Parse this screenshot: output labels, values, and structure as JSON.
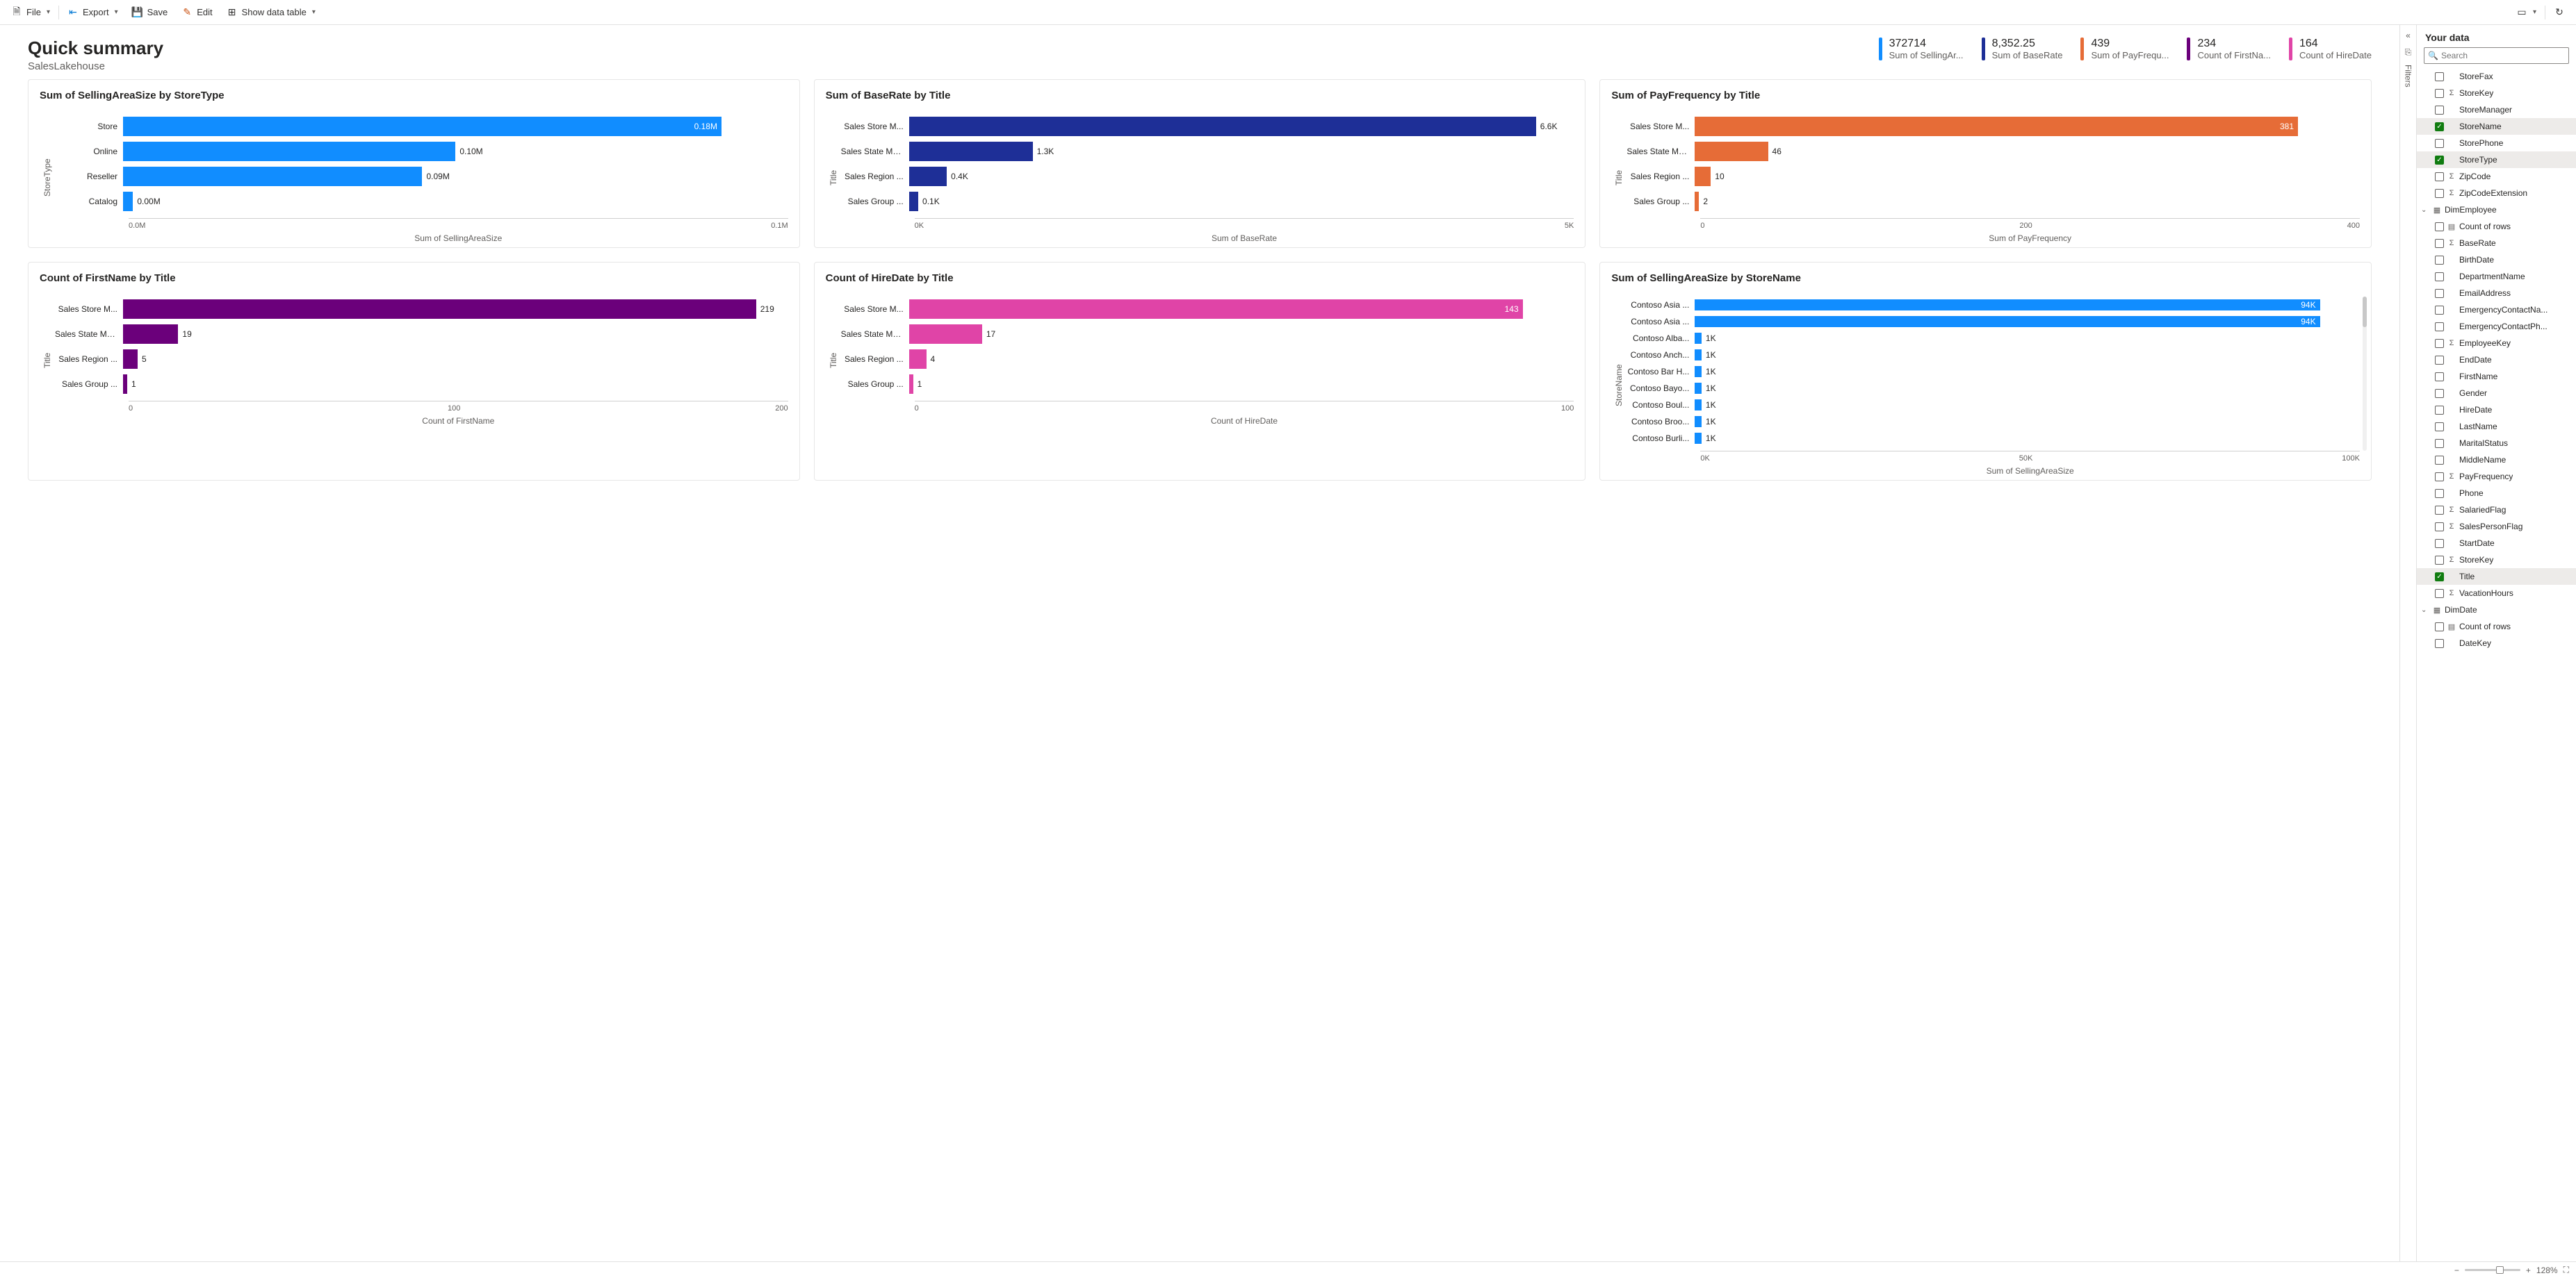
{
  "toolbar": {
    "file": "File",
    "export": "Export",
    "save": "Save",
    "edit": "Edit",
    "show_table": "Show data table"
  },
  "header": {
    "title": "Quick summary",
    "subtitle": "SalesLakehouse"
  },
  "kpis": [
    {
      "value": "372714",
      "label": "Sum of SellingAr...",
      "color": "#118dff"
    },
    {
      "value": "8,352.25",
      "label": "Sum of BaseRate",
      "color": "#1e2f97"
    },
    {
      "value": "439",
      "label": "Sum of PayFrequ...",
      "color": "#e66c37"
    },
    {
      "value": "234",
      "label": "Count of FirstNa...",
      "color": "#6b007b"
    },
    {
      "value": "164",
      "label": "Count of HireDate",
      "color": "#e044a7"
    }
  ],
  "charts": [
    {
      "title": "Sum of SellingAreaSize by StoreType",
      "ylabel": "StoreType",
      "xlabel": "Sum of SellingAreaSize",
      "color": "#118dff",
      "max": 0.2,
      "ticks": [
        "0.0M",
        "0.1M"
      ],
      "rows": [
        {
          "cat": "Store",
          "val": 0.18,
          "label": "0.18M",
          "inside": true
        },
        {
          "cat": "Online",
          "val": 0.1,
          "label": "0.10M",
          "inside": false
        },
        {
          "cat": "Reseller",
          "val": 0.09,
          "label": "0.09M",
          "inside": false
        },
        {
          "cat": "Catalog",
          "val": 0.003,
          "label": "0.00M",
          "inside": false
        }
      ]
    },
    {
      "title": "Sum of BaseRate by Title",
      "ylabel": "Title",
      "xlabel": "Sum of BaseRate",
      "color": "#1e2f97",
      "max": 7.0,
      "ticks": [
        "0K",
        "5K"
      ],
      "rows": [
        {
          "cat": "Sales Store M...",
          "val": 6.6,
          "label": "6.6K",
          "inside": false
        },
        {
          "cat": "Sales State Ma...",
          "val": 1.3,
          "label": "1.3K",
          "inside": false
        },
        {
          "cat": "Sales Region ...",
          "val": 0.4,
          "label": "0.4K",
          "inside": false
        },
        {
          "cat": "Sales Group ...",
          "val": 0.1,
          "label": "0.1K",
          "inside": false
        }
      ]
    },
    {
      "title": "Sum of PayFrequency by Title",
      "ylabel": "Title",
      "xlabel": "Sum of PayFrequency",
      "color": "#e66c37",
      "max": 420,
      "ticks": [
        "0",
        "200",
        "400"
      ],
      "rows": [
        {
          "cat": "Sales Store M...",
          "val": 381,
          "label": "381",
          "inside": true
        },
        {
          "cat": "Sales State Ma...",
          "val": 46,
          "label": "46",
          "inside": false
        },
        {
          "cat": "Sales Region ...",
          "val": 10,
          "label": "10",
          "inside": false
        },
        {
          "cat": "Sales Group ...",
          "val": 2,
          "label": "2",
          "inside": false
        }
      ]
    },
    {
      "title": "Count of FirstName by Title",
      "ylabel": "Title",
      "xlabel": "Count of FirstName",
      "color": "#6b007b",
      "max": 230,
      "ticks": [
        "0",
        "100",
        "200"
      ],
      "rows": [
        {
          "cat": "Sales Store M...",
          "val": 219,
          "label": "219",
          "inside": false
        },
        {
          "cat": "Sales State Ma...",
          "val": 19,
          "label": "19",
          "inside": false
        },
        {
          "cat": "Sales Region ...",
          "val": 5,
          "label": "5",
          "inside": false
        },
        {
          "cat": "Sales Group ...",
          "val": 1,
          "label": "1",
          "inside": false
        }
      ]
    },
    {
      "title": "Count of HireDate by Title",
      "ylabel": "Title",
      "xlabel": "Count of HireDate",
      "color": "#e044a7",
      "max": 155,
      "ticks": [
        "0",
        "100"
      ],
      "rows": [
        {
          "cat": "Sales Store M...",
          "val": 143,
          "label": "143",
          "inside": true
        },
        {
          "cat": "Sales State Ma...",
          "val": 17,
          "label": "17",
          "inside": false
        },
        {
          "cat": "Sales Region ...",
          "val": 4,
          "label": "4",
          "inside": false
        },
        {
          "cat": "Sales Group ...",
          "val": 1,
          "label": "1",
          "inside": false
        }
      ]
    },
    {
      "title": "Sum of SellingAreaSize by StoreName",
      "ylabel": "StoreName",
      "xlabel": "Sum of SellingAreaSize",
      "color": "#118dff",
      "max": 100,
      "ticks": [
        "0K",
        "50K",
        "100K"
      ],
      "slim": true,
      "scroll": true,
      "rows": [
        {
          "cat": "Contoso Asia ...",
          "val": 94,
          "label": "94K",
          "inside": true
        },
        {
          "cat": "Contoso Asia ...",
          "val": 94,
          "label": "94K",
          "inside": true
        },
        {
          "cat": "Contoso Alba...",
          "val": 1,
          "label": "1K",
          "inside": false
        },
        {
          "cat": "Contoso Anch...",
          "val": 1,
          "label": "1K",
          "inside": false
        },
        {
          "cat": "Contoso Bar H...",
          "val": 1,
          "label": "1K",
          "inside": false
        },
        {
          "cat": "Contoso Bayo...",
          "val": 1,
          "label": "1K",
          "inside": false
        },
        {
          "cat": "Contoso Boul...",
          "val": 1,
          "label": "1K",
          "inside": false
        },
        {
          "cat": "Contoso Broo...",
          "val": 1,
          "label": "1K",
          "inside": false
        },
        {
          "cat": "Contoso Burli...",
          "val": 1,
          "label": "1K",
          "inside": false
        }
      ]
    }
  ],
  "data_pane": {
    "title": "Your data",
    "search_placeholder": "Search",
    "fields": [
      {
        "name": "StoreFax",
        "sigma": false,
        "checked": false,
        "indent": 1
      },
      {
        "name": "StoreKey",
        "sigma": true,
        "checked": false,
        "indent": 1
      },
      {
        "name": "StoreManager",
        "sigma": false,
        "checked": false,
        "indent": 1
      },
      {
        "name": "StoreName",
        "sigma": false,
        "checked": true,
        "indent": 1
      },
      {
        "name": "StorePhone",
        "sigma": false,
        "checked": false,
        "indent": 1
      },
      {
        "name": "StoreType",
        "sigma": false,
        "checked": true,
        "indent": 1
      },
      {
        "name": "ZipCode",
        "sigma": true,
        "checked": false,
        "indent": 1
      },
      {
        "name": "ZipCodeExtension",
        "sigma": true,
        "checked": false,
        "indent": 1
      },
      {
        "name": "DimEmployee",
        "table": true,
        "indent": 0
      },
      {
        "name": "Count of rows",
        "calc": true,
        "checked": false,
        "indent": 1
      },
      {
        "name": "BaseRate",
        "sigma": true,
        "checked": false,
        "indent": 1
      },
      {
        "name": "BirthDate",
        "sigma": false,
        "checked": false,
        "indent": 1
      },
      {
        "name": "DepartmentName",
        "sigma": false,
        "checked": false,
        "indent": 1
      },
      {
        "name": "EmailAddress",
        "sigma": false,
        "checked": false,
        "indent": 1
      },
      {
        "name": "EmergencyContactNa...",
        "sigma": false,
        "checked": false,
        "indent": 1
      },
      {
        "name": "EmergencyContactPh...",
        "sigma": false,
        "checked": false,
        "indent": 1
      },
      {
        "name": "EmployeeKey",
        "sigma": true,
        "checked": false,
        "indent": 1
      },
      {
        "name": "EndDate",
        "sigma": false,
        "checked": false,
        "indent": 1
      },
      {
        "name": "FirstName",
        "sigma": false,
        "checked": false,
        "indent": 1
      },
      {
        "name": "Gender",
        "sigma": false,
        "checked": false,
        "indent": 1
      },
      {
        "name": "HireDate",
        "sigma": false,
        "checked": false,
        "indent": 1
      },
      {
        "name": "LastName",
        "sigma": false,
        "checked": false,
        "indent": 1
      },
      {
        "name": "MaritalStatus",
        "sigma": false,
        "checked": false,
        "indent": 1
      },
      {
        "name": "MiddleName",
        "sigma": false,
        "checked": false,
        "indent": 1
      },
      {
        "name": "PayFrequency",
        "sigma": true,
        "checked": false,
        "indent": 1
      },
      {
        "name": "Phone",
        "sigma": false,
        "checked": false,
        "indent": 1
      },
      {
        "name": "SalariedFlag",
        "sigma": true,
        "checked": false,
        "indent": 1
      },
      {
        "name": "SalesPersonFlag",
        "sigma": true,
        "checked": false,
        "indent": 1
      },
      {
        "name": "StartDate",
        "sigma": false,
        "checked": false,
        "indent": 1
      },
      {
        "name": "StoreKey",
        "sigma": true,
        "checked": false,
        "indent": 1
      },
      {
        "name": "Title",
        "sigma": false,
        "checked": true,
        "indent": 1
      },
      {
        "name": "VacationHours",
        "sigma": true,
        "checked": false,
        "indent": 1
      },
      {
        "name": "DimDate",
        "table": true,
        "indent": 0
      },
      {
        "name": "Count of rows",
        "calc": true,
        "checked": false,
        "indent": 1
      },
      {
        "name": "DateKey",
        "sigma": false,
        "checked": false,
        "indent": 1
      }
    ]
  },
  "filters_label": "Filters",
  "zoom": "128%"
}
